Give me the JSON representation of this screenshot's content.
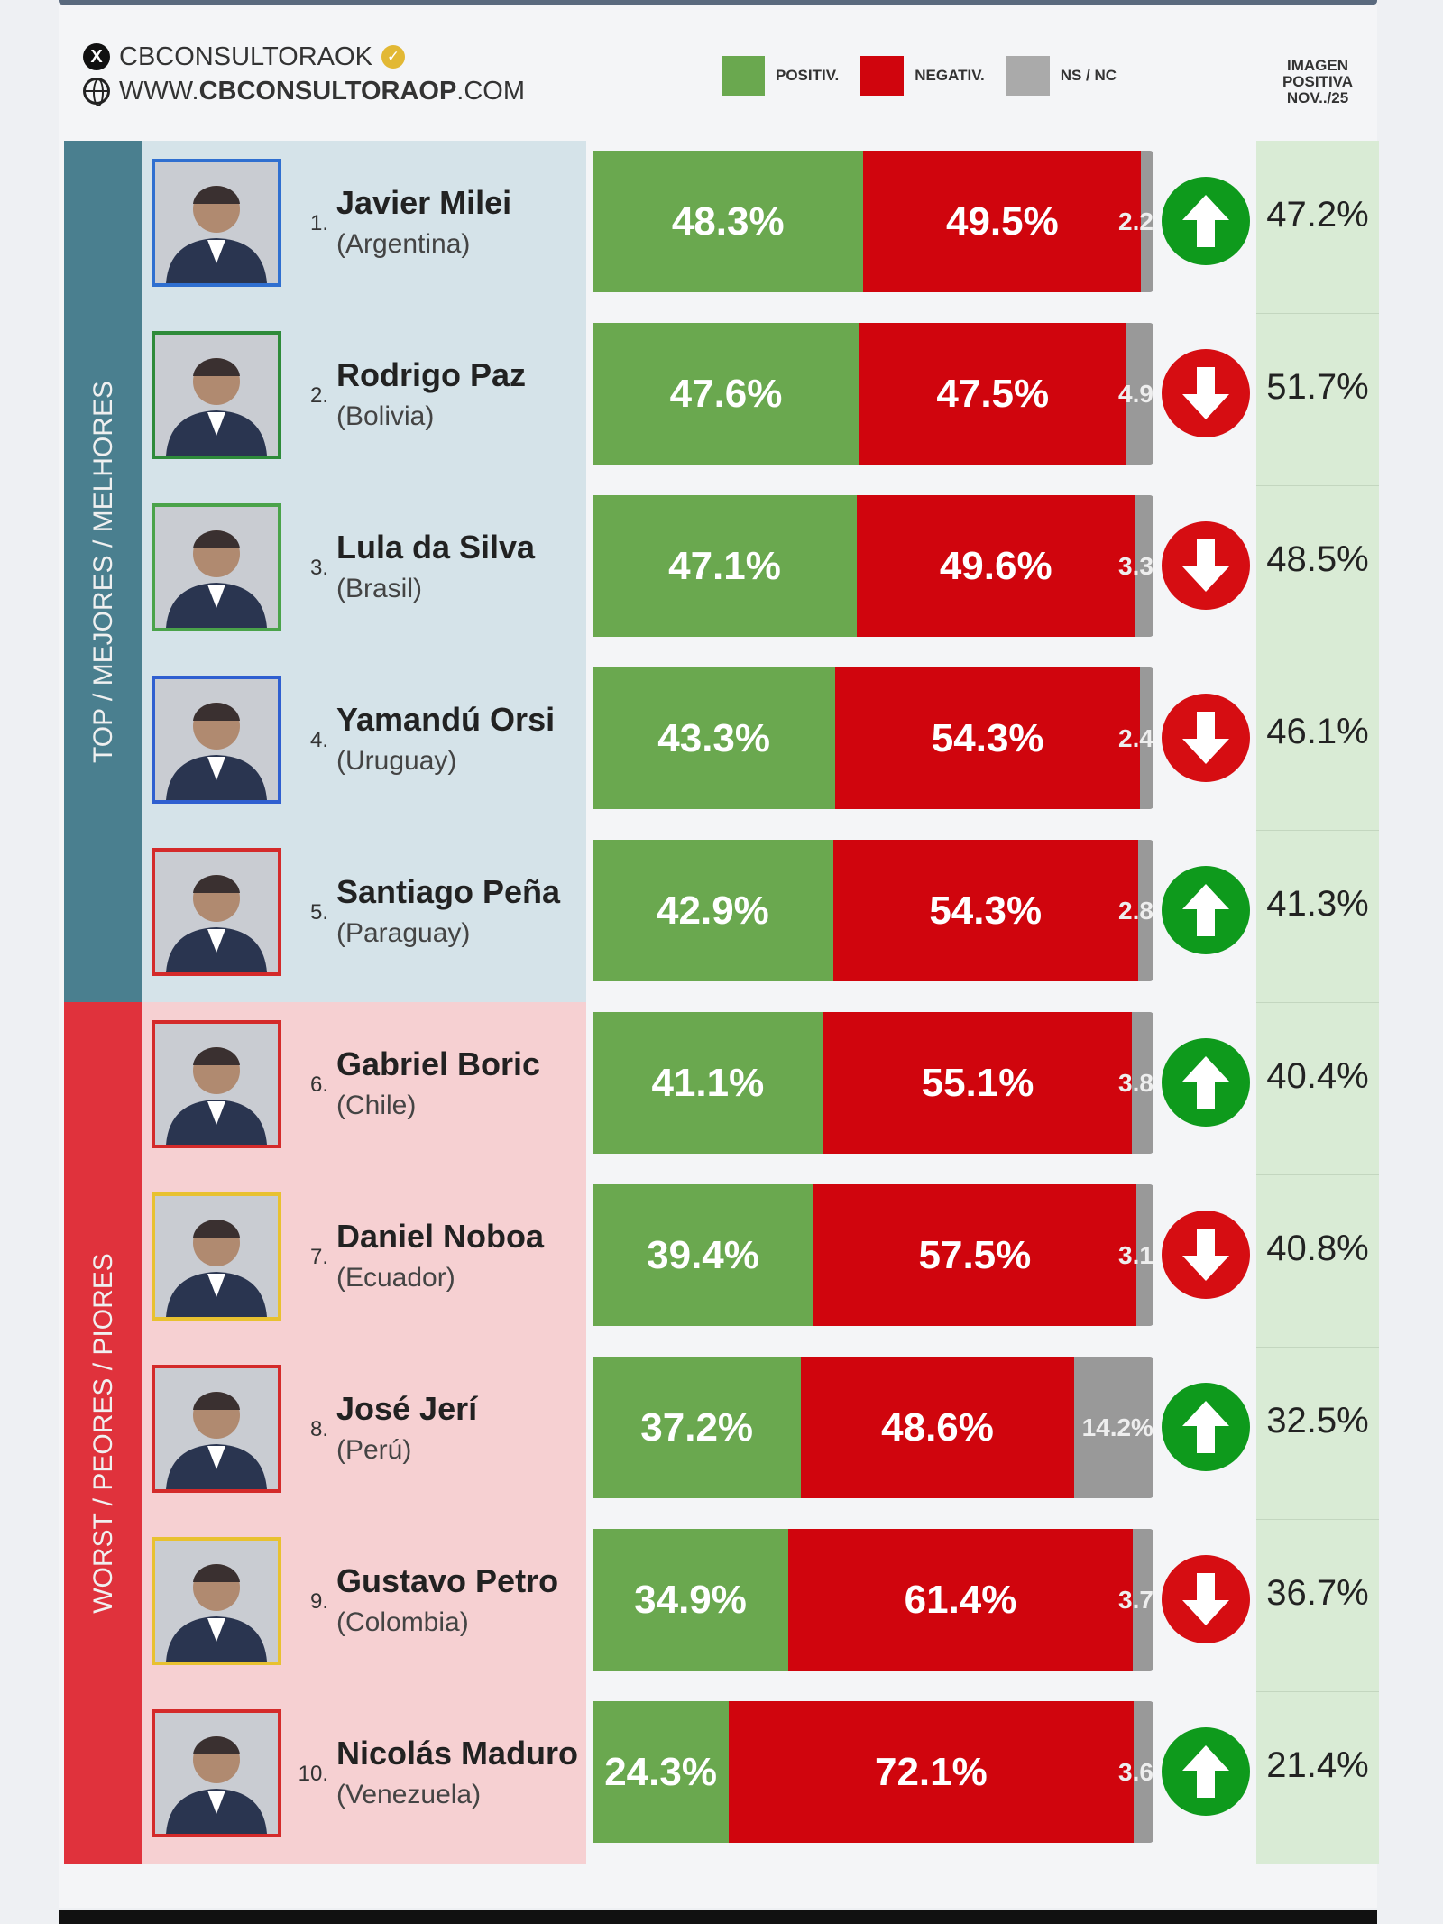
{
  "header": {
    "handle": "CBCONSULTORAOK",
    "website_prefix": "WWW.",
    "website_bold": "CBCONSULTORAOP",
    "website_suffix": ".COM",
    "column_title": [
      "IMAGEN",
      "POSITIVA",
      "NOV../25"
    ]
  },
  "legend": [
    {
      "label": "POSITIV.",
      "color": "#6aa84f"
    },
    {
      "label": "NEGATIV.",
      "color": "#d0050d"
    },
    {
      "label": "NS / NC",
      "color": "#aaaaaa"
    }
  ],
  "groups": {
    "top": {
      "label": "TOP / MEJORES / MELHORES",
      "color": "#4a7f8f",
      "bg": "#d5e3e9"
    },
    "worst": {
      "label": "WORST / PEORES / PIORES",
      "color": "#e0323c",
      "bg": "#f6d0d2"
    }
  },
  "chart_data": {
    "type": "bar",
    "stacked": true,
    "orientation": "horizontal",
    "series_names": [
      "POSITIV.",
      "NEGATIV.",
      "NS / NC"
    ],
    "rows": [
      {
        "rank": "1.",
        "name": "Javier Milei",
        "country": "(Argentina)",
        "pos": 48.3,
        "neg": 49.5,
        "ns": 2.2,
        "pos_label": "48.3%",
        "neg_label": "49.5%",
        "ns_label": "2.2",
        "trend": "up",
        "image": "47.2%",
        "frame": "#2f6fd0",
        "group": "top"
      },
      {
        "rank": "2.",
        "name": "Rodrigo Paz",
        "country": "(Bolivia)",
        "pos": 47.6,
        "neg": 47.5,
        "ns": 4.9,
        "pos_label": "47.6%",
        "neg_label": "47.5%",
        "ns_label": "4.9",
        "trend": "down",
        "image": "51.7%",
        "frame": "#2e8b3a",
        "group": "top"
      },
      {
        "rank": "3.",
        "name": "Lula da Silva",
        "country": "(Brasil)",
        "pos": 47.1,
        "neg": 49.6,
        "ns": 3.3,
        "pos_label": "47.1%",
        "neg_label": "49.6%",
        "ns_label": "3.3",
        "trend": "down",
        "image": "48.5%",
        "frame": "#4aa34a",
        "group": "top"
      },
      {
        "rank": "4.",
        "name": "Yamandú Orsi",
        "country": "(Uruguay)",
        "pos": 43.3,
        "neg": 54.3,
        "ns": 2.4,
        "pos_label": "43.3%",
        "neg_label": "54.3%",
        "ns_label": "2.4",
        "trend": "down",
        "image": "46.1%",
        "frame": "#2f5fd0",
        "group": "top"
      },
      {
        "rank": "5.",
        "name": "Santiago Peña",
        "country": "(Paraguay)",
        "pos": 42.9,
        "neg": 54.3,
        "ns": 2.8,
        "pos_label": "42.9%",
        "neg_label": "54.3%",
        "ns_label": "2.8",
        "trend": "up",
        "image": "41.3%",
        "frame": "#d42a2a",
        "group": "top"
      },
      {
        "rank": "6.",
        "name": "Gabriel Boric",
        "country": "(Chile)",
        "pos": 41.1,
        "neg": 55.1,
        "ns": 3.8,
        "pos_label": "41.1%",
        "neg_label": "55.1%",
        "ns_label": "3.8",
        "trend": "up",
        "image": "40.4%",
        "frame": "#d42a2a",
        "group": "worst"
      },
      {
        "rank": "7.",
        "name": "Daniel Noboa",
        "country": "(Ecuador)",
        "pos": 39.4,
        "neg": 57.5,
        "ns": 3.1,
        "pos_label": "39.4%",
        "neg_label": "57.5%",
        "ns_label": "3.1",
        "trend": "down",
        "image": "40.8%",
        "frame": "#e8c130",
        "group": "worst"
      },
      {
        "rank": "8.",
        "name": "José Jerí",
        "country": "(Perú)",
        "pos": 37.2,
        "neg": 48.6,
        "ns": 14.2,
        "pos_label": "37.2%",
        "neg_label": "48.6%",
        "ns_label": "14.2%",
        "trend": "up",
        "image": "32.5%",
        "frame": "#d42a2a",
        "group": "worst"
      },
      {
        "rank": "9.",
        "name": "Gustavo Petro",
        "country": "(Colombia)",
        "pos": 34.9,
        "neg": 61.4,
        "ns": 3.7,
        "pos_label": "34.9%",
        "neg_label": "61.4%",
        "ns_label": "3.7",
        "trend": "down",
        "image": "36.7%",
        "frame": "#e8c130",
        "group": "worst"
      },
      {
        "rank": "10.",
        "name": "Nicolás Maduro",
        "country": "(Venezuela)",
        "pos": 24.3,
        "neg": 72.1,
        "ns": 3.6,
        "pos_label": "24.3%",
        "neg_label": "72.1%",
        "ns_label": "3.6",
        "trend": "up",
        "image": "21.4%",
        "frame": "#d42a2a",
        "group": "worst"
      }
    ],
    "xlim": [
      0,
      100
    ]
  }
}
